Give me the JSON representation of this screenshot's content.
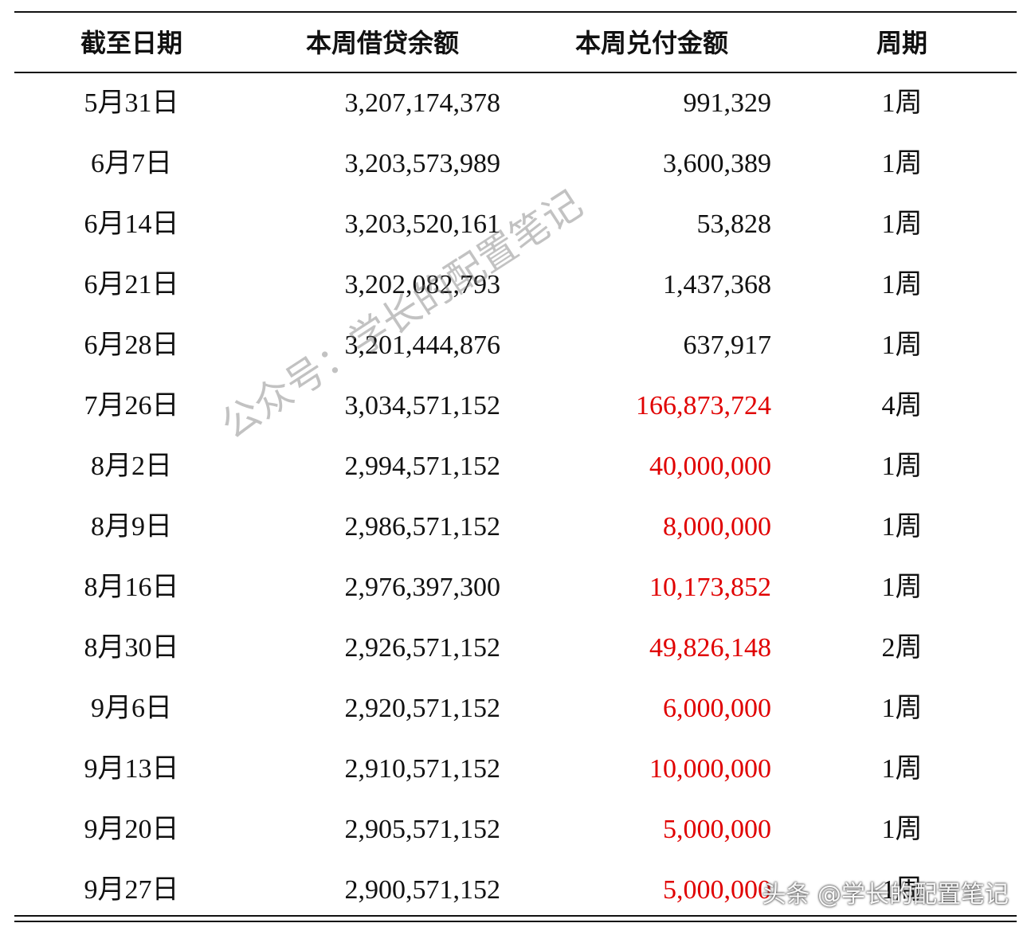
{
  "table": {
    "header": [
      "截至日期",
      "本周借贷余额",
      "本周兑付金额",
      "周期"
    ],
    "rows": [
      [
        "5月31日",
        "3,207,174,378",
        "991,329",
        "1周"
      ],
      [
        "6月7日",
        "3,203,573,989",
        "3,600,389",
        "1周"
      ],
      [
        "6月14日",
        "3,203,520,161",
        "53,828",
        "1周"
      ],
      [
        "6月21日",
        "3,202,082,793",
        "1,437,368",
        "1周"
      ],
      [
        "6月28日",
        "3,201,444,876",
        "637,917",
        "1周"
      ],
      [
        "7月26日",
        "3,034,571,152",
        "166,873,724",
        "4周"
      ],
      [
        "8月2日",
        "2,994,571,152",
        "40,000,000",
        "1周"
      ],
      [
        "8月9日",
        "2,986,571,152",
        "8,000,000",
        "1周"
      ],
      [
        "8月16日",
        "2,976,397,300",
        "10,173,852",
        "1周"
      ],
      [
        "8月30日",
        "2,926,571,152",
        "49,826,148",
        "2周"
      ],
      [
        "9月6日",
        "2,920,571,152",
        "6,000,000",
        "1周"
      ],
      [
        "9月13日",
        "2,910,571,152",
        "10,000,000",
        "1周"
      ],
      [
        "9月20日",
        "2,905,571,152",
        "5,000,000",
        "1周"
      ],
      [
        "9月27日",
        "2,900,571,152",
        "5,000,000",
        "1周"
      ]
    ],
    "amount_colors": [
      "#111111",
      "#111111",
      "#111111",
      "#111111",
      "#111111",
      "#e00000",
      "#e00000",
      "#e00000",
      "#e00000",
      "#e00000",
      "#e00000",
      "#e00000",
      "#e00000",
      "#e00000"
    ]
  },
  "watermarks": [
    "公众号：学长的配置笔记",
    "头条 @学长的配置笔记"
  ]
}
